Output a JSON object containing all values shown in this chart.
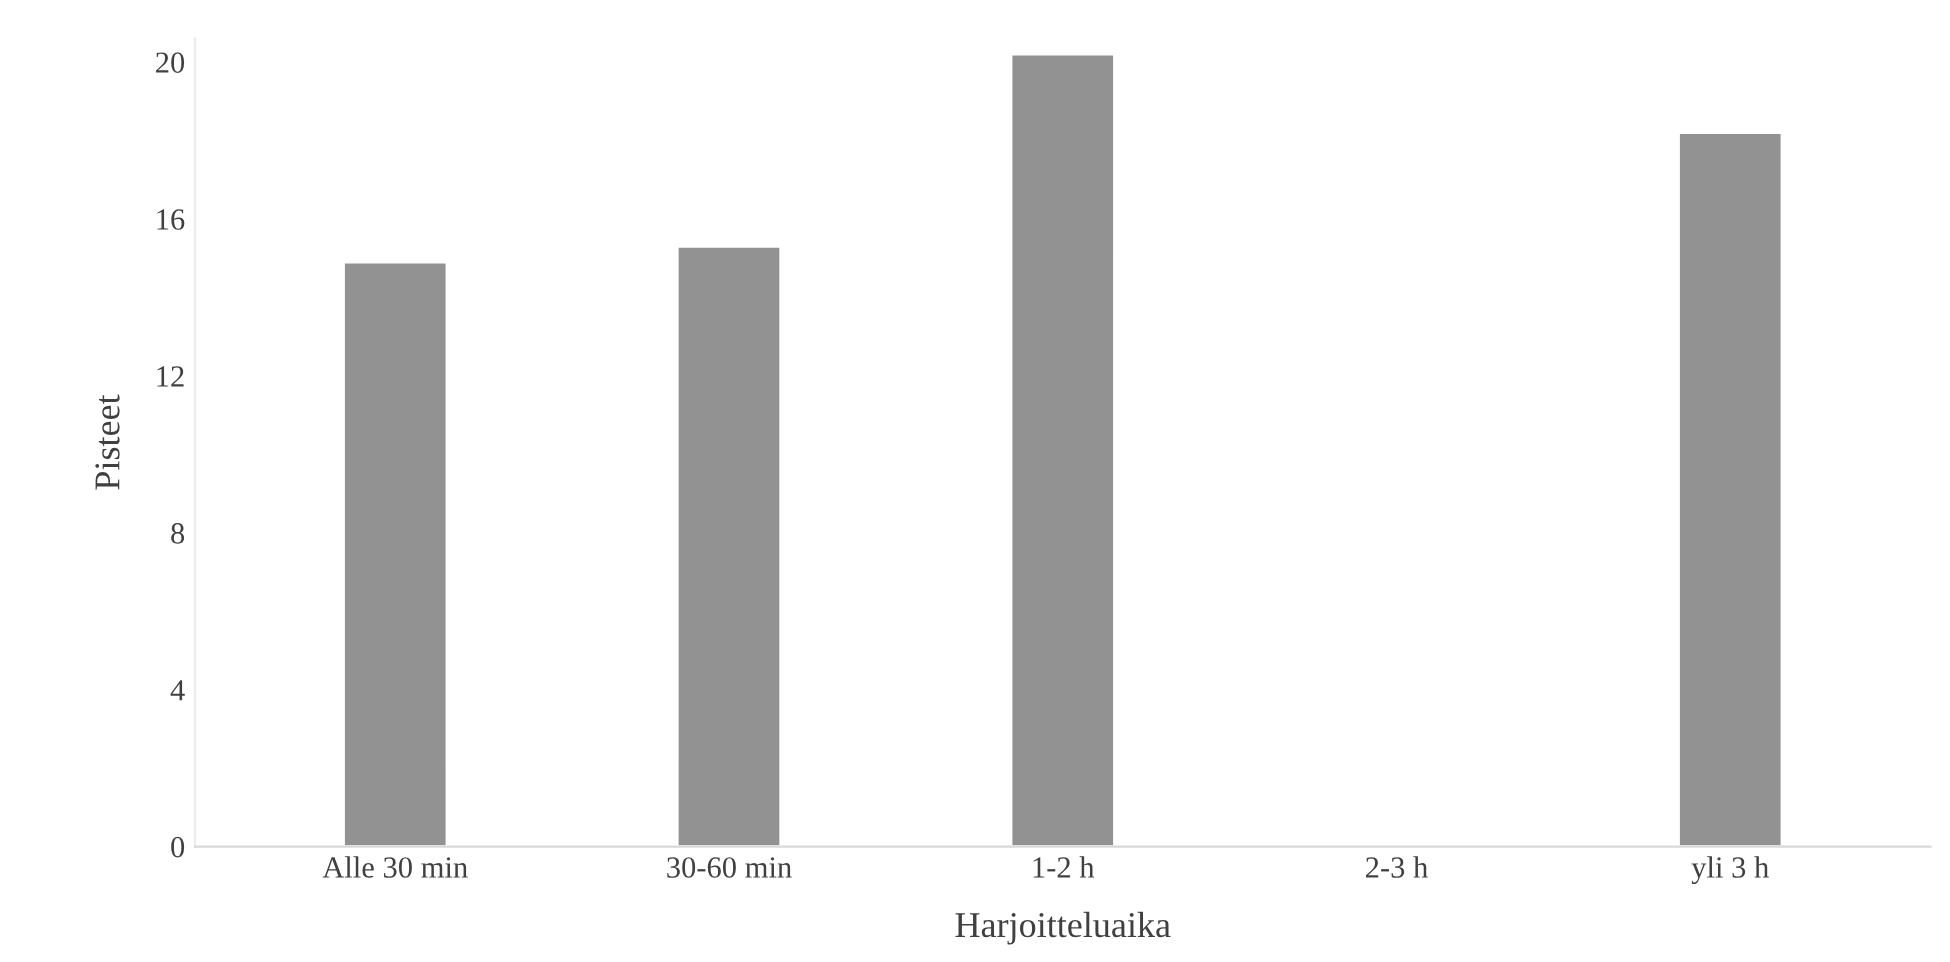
{
  "chart_data": {
    "type": "bar",
    "xlabel": "Harjoitteluaika",
    "ylabel": "Pisteet",
    "categories": [
      "Alle 30 min",
      "30-60 min",
      "1-2 h",
      "2-3 h",
      "yli 3 h"
    ],
    "values": [
      14.9,
      15.3,
      20.2,
      null,
      18.2
    ],
    "color": "#929292",
    "ylim": [
      0,
      20.6
    ],
    "yticks": [
      0,
      4,
      8,
      12,
      16,
      20
    ],
    "grid": false
  }
}
